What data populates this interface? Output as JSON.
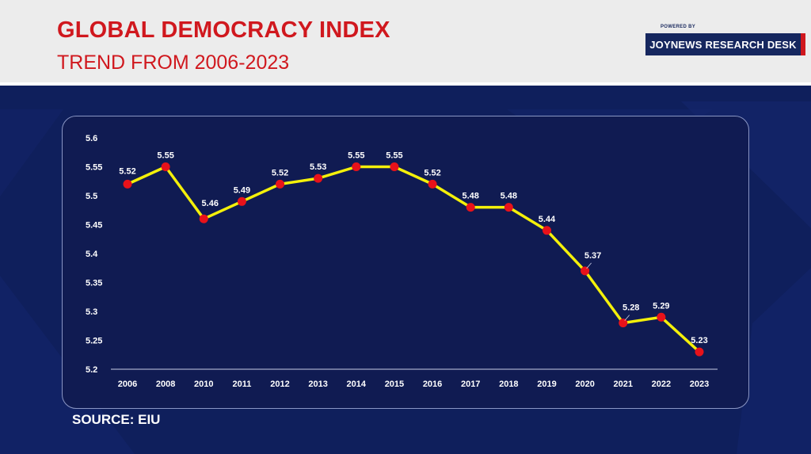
{
  "header": {
    "title": "GLOBAL DEMOCRACY INDEX",
    "subtitle": "TREND FROM 2006-2023",
    "badge_powered": "POWERED BY",
    "badge_name": "JOYNEWS RESEARCH DESK"
  },
  "footer": {
    "source": "SOURCE: EIU"
  },
  "colors": {
    "title": "#d0181e",
    "background": "#0f1f5c",
    "panel": "#101b52",
    "line": "#f4f00a",
    "marker": "#e8121a",
    "text": "#ffffff"
  },
  "chart_data": {
    "type": "line",
    "title": "GLOBAL DEMOCRACY INDEX",
    "subtitle": "TREND FROM 2006-2023",
    "xlabel": "",
    "ylabel": "",
    "categories": [
      "2006",
      "2008",
      "2010",
      "2011",
      "2012",
      "2013",
      "2014",
      "2015",
      "2016",
      "2017",
      "2018",
      "2019",
      "2020",
      "2021",
      "2022",
      "2023"
    ],
    "series": [
      {
        "name": "Global Democracy Index",
        "values": [
          5.52,
          5.55,
          5.46,
          5.49,
          5.52,
          5.53,
          5.55,
          5.55,
          5.52,
          5.48,
          5.48,
          5.44,
          5.37,
          5.28,
          5.29,
          5.23
        ]
      }
    ],
    "data_labels": [
      "5.52",
      "5.55",
      "5.46",
      "5.49",
      "5.52",
      "5.53",
      "5.55",
      "5.55",
      "5.52",
      "5.48",
      "5.48",
      "5.44",
      "5.37",
      "5.28",
      "5.29",
      "5.23"
    ],
    "ylim": [
      5.2,
      5.6
    ],
    "yticks": [
      "5.2",
      "5.25",
      "5.3",
      "5.35",
      "5.4",
      "5.45",
      "5.5",
      "5.55",
      "5.6"
    ],
    "grid": false,
    "legend": "none"
  }
}
